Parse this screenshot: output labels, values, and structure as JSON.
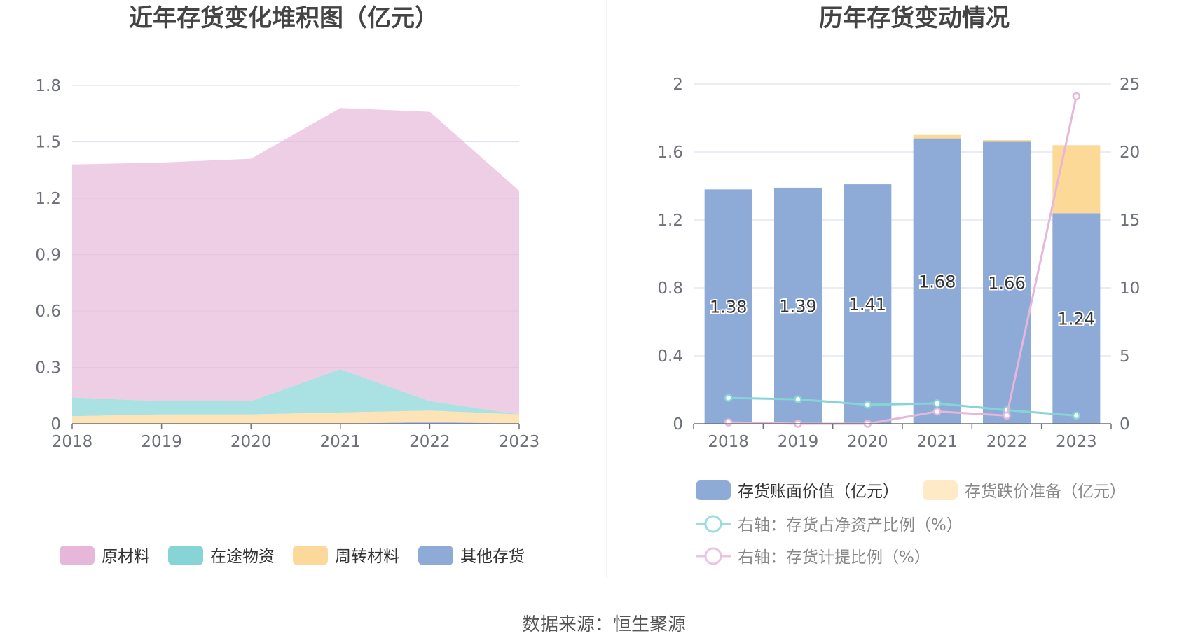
{
  "source": "数据来源：恒生聚源",
  "colors": {
    "raw": "#e6b7d8",
    "transit": "#86d4d6",
    "turnover": "#fcd99a",
    "other": "#8eabd8",
    "book": "#8eabd8",
    "reserve": "#fdd997",
    "ratio_net": "#86d4d6",
    "ratio_provision": "#e6b7d8",
    "grid": "#dfe2f0",
    "axis": "#6e7079"
  },
  "chart_data": [
    {
      "type": "area",
      "title": "近年存货变化堆积图（亿元）",
      "categories": [
        "2018",
        "2019",
        "2020",
        "2021",
        "2022",
        "2023"
      ],
      "ylim": [
        0,
        1.8
      ],
      "yticks": [
        "0",
        "0.3",
        "0.6",
        "0.9",
        "1.2",
        "1.5",
        "1.8"
      ],
      "stacked": true,
      "grid": true,
      "legend_position": "bottom",
      "series": [
        {
          "name": "其他存货",
          "color_key": "other",
          "values": [
            0.0,
            0.0,
            0.0,
            0.0,
            0.01,
            0.0
          ]
        },
        {
          "name": "周转材料",
          "color_key": "turnover",
          "values": [
            0.04,
            0.05,
            0.05,
            0.06,
            0.06,
            0.05
          ]
        },
        {
          "name": "在途物资",
          "color_key": "transit",
          "values": [
            0.1,
            0.07,
            0.07,
            0.23,
            0.05,
            0.0
          ]
        },
        {
          "name": "原材料",
          "color_key": "raw",
          "values": [
            1.24,
            1.27,
            1.29,
            1.39,
            1.54,
            1.19
          ]
        }
      ],
      "legend": [
        "原材料",
        "在途物资",
        "周转材料",
        "其他存货"
      ]
    },
    {
      "type": "bar",
      "title": "历年存货变动情况",
      "categories": [
        "2018",
        "2019",
        "2020",
        "2021",
        "2022",
        "2023"
      ],
      "ylim": [
        0,
        2
      ],
      "yticks": [
        "0",
        "0.4",
        "0.8",
        "1.2",
        "1.6",
        "2"
      ],
      "y2lim": [
        0,
        25
      ],
      "y2ticks": [
        "0",
        "5",
        "10",
        "15",
        "20",
        "25"
      ],
      "grid": true,
      "legend_position": "bottom",
      "series": [
        {
          "name": "存货账面价值（亿元）",
          "type": "bar",
          "color_key": "book",
          "values": [
            1.38,
            1.39,
            1.41,
            1.68,
            1.66,
            1.24
          ],
          "labels": [
            "1.38",
            "1.39",
            "1.41",
            "1.68",
            "1.66",
            "1.24"
          ]
        },
        {
          "name": "存货跌价准备（亿元）",
          "type": "bar",
          "color_key": "reserve",
          "values": [
            0.0,
            0.0,
            0.0,
            0.02,
            0.01,
            0.4
          ]
        },
        {
          "name": "右轴：存货占净资产比例（%）",
          "type": "line",
          "axis": "right",
          "color_key": "ratio_net",
          "values": [
            1.9,
            1.8,
            1.4,
            1.5,
            1.0,
            0.6
          ]
        },
        {
          "name": "右轴：存货计提比例（%）",
          "type": "line",
          "axis": "right",
          "color_key": "ratio_provision",
          "values": [
            0.1,
            0.0,
            0.0,
            0.9,
            0.6,
            24.1
          ]
        }
      ]
    }
  ]
}
